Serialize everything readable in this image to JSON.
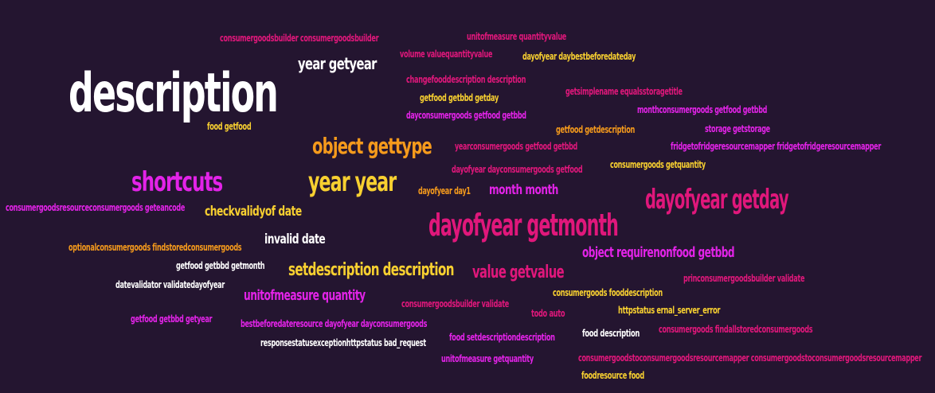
{
  "background": "#241530",
  "palette": {
    "white": "#ffffff",
    "yellow": "#f8d030",
    "orange": "#f59a1c",
    "magenta": "#e323e8",
    "pink": "#e0177b"
  },
  "words": [
    {
      "id": "description",
      "text": "description",
      "color": "white"
    },
    {
      "id": "dayofyear-getmonth",
      "text": "dayofyear getmonth",
      "color": "pink"
    },
    {
      "id": "dayofyear-getday",
      "text": "dayofyear getday",
      "color": "pink"
    },
    {
      "id": "shortcuts",
      "text": "shortcuts",
      "color": "magenta"
    },
    {
      "id": "year-year",
      "text": "year year",
      "color": "yellow"
    },
    {
      "id": "object-gettype",
      "text": "object gettype",
      "color": "orange"
    },
    {
      "id": "setdescription-description",
      "text": "setdescription description",
      "color": "yellow"
    },
    {
      "id": "value-getvalue",
      "text": "value getvalue",
      "color": "pink"
    },
    {
      "id": "year-getyear",
      "text": "year getyear",
      "color": "white"
    },
    {
      "id": "month-month",
      "text": "month month",
      "color": "magenta"
    },
    {
      "id": "object-requirenonfood-getbbd",
      "text": "object requirenonfood getbbd",
      "color": "magenta"
    },
    {
      "id": "unitofmeasure-quantity",
      "text": "unitofmeasure quantity",
      "color": "magenta"
    },
    {
      "id": "invalid-date",
      "text": "invalid date",
      "color": "white"
    },
    {
      "id": "checkvalidyof-date",
      "text": "checkvalidyof date",
      "color": "yellow"
    },
    {
      "id": "consumergoodsbuilder-consumergoodsbuilder",
      "text": "consumergoodsbuilder consumergoodsbuilder",
      "color": "pink"
    },
    {
      "id": "unitofmeasure-quantityvalue",
      "text": "unitofmeasure quantityvalue",
      "color": "pink"
    },
    {
      "id": "volume-valuequantityvalue",
      "text": "volume valuequantityvalue",
      "color": "pink"
    },
    {
      "id": "dayofyear-daybestbeforedateday",
      "text": "dayofyear daybestbeforedateday",
      "color": "yellow"
    },
    {
      "id": "changefooddescription-description",
      "text": "changefooddescription description",
      "color": "pink"
    },
    {
      "id": "getsimplename-equalsstoragetitle",
      "text": "getsimplename equalsstoragetitle",
      "color": "pink"
    },
    {
      "id": "getfood-getbbd-getday",
      "text": "getfood getbbd getday",
      "color": "yellow"
    },
    {
      "id": "monthconsumergoods-getfood-getbbd",
      "text": "monthconsumergoods getfood getbbd",
      "color": "magenta"
    },
    {
      "id": "dayconsumergoods-getfood-getbbd",
      "text": "dayconsumergoods getfood getbbd",
      "color": "magenta"
    },
    {
      "id": "food-getfood",
      "text": "food getfood",
      "color": "yellow"
    },
    {
      "id": "getfood-getdescription",
      "text": "getfood getdescription",
      "color": "orange"
    },
    {
      "id": "storage-getstorage",
      "text": "storage getstorage",
      "color": "magenta"
    },
    {
      "id": "yearconsumergoods-getfood-getbbd",
      "text": "yearconsumergoods getfood getbbd",
      "color": "pink"
    },
    {
      "id": "fridgetofridgeresourcemapper",
      "text": "fridgetofridgeresourcemapper fridgetofridgeresourcemapper",
      "color": "magenta"
    },
    {
      "id": "consumergoods-getquantity",
      "text": "consumergoods getquantity",
      "color": "yellow"
    },
    {
      "id": "dayofyear-dayconsumergoods-getfood",
      "text": "dayofyear dayconsumergoods getfood",
      "color": "pink"
    },
    {
      "id": "dayofyear-day1",
      "text": "dayofyear day1",
      "color": "orange"
    },
    {
      "id": "consumergoodsresourceconsumergoods-geteancode",
      "text": "consumergoodsresourceconsumergoods geteancode",
      "color": "magenta"
    },
    {
      "id": "optionalconsumergoods-findstoredconsumergoods",
      "text": "optionalconsumergoods findstoredconsumergoods",
      "color": "orange"
    },
    {
      "id": "getfood-getbbd-getmonth",
      "text": "getfood getbbd getmonth",
      "color": "white"
    },
    {
      "id": "datevalidator-validatedayofyear",
      "text": "datevalidator validatedayofyear",
      "color": "white"
    },
    {
      "id": "princonsumergoodsbuilder-validate",
      "text": "princonsumergoodsbuilder validate",
      "color": "pink"
    },
    {
      "id": "consumergoods-fooddescription",
      "text": "consumergoods fooddescription",
      "color": "yellow"
    },
    {
      "id": "consumergoodsbuilder-validate",
      "text": "consumergoodsbuilder validate",
      "color": "pink"
    },
    {
      "id": "todo-auto",
      "text": "todo auto",
      "color": "pink"
    },
    {
      "id": "httpstatus-ernal-server-error",
      "text": "httpstatus ernal_server_error",
      "color": "yellow"
    },
    {
      "id": "getfood-getbbd-getyear",
      "text": "getfood getbbd getyear",
      "color": "magenta"
    },
    {
      "id": "bestbeforedateresource-dayofyear-dayconsumergoods",
      "text": "bestbeforedateresource dayofyear dayconsumergoods",
      "color": "magenta"
    },
    {
      "id": "food-setdescriptiondescription",
      "text": "food setdescriptiondescription",
      "color": "magenta"
    },
    {
      "id": "food-description",
      "text": "food description",
      "color": "white"
    },
    {
      "id": "consumergoods-findallstoredconsumergoods",
      "text": "consumergoods findallstoredconsumergoods",
      "color": "pink"
    },
    {
      "id": "responsestatusexceptionhttpstatus-bad-request",
      "text": "responsestatusexceptionhttpstatus bad_request",
      "color": "white"
    },
    {
      "id": "unitofmeasure-getquantity",
      "text": "unitofmeasure getquantity",
      "color": "magenta"
    },
    {
      "id": "consumergoodstoconsumergoodsresourcemapper",
      "text": "consumergoodstoconsumergoodsresourcemapper consumergoodstoconsumergoodsresourcemapper",
      "color": "pink"
    },
    {
      "id": "foodresource-food",
      "text": "foodresource food",
      "color": "yellow"
    }
  ]
}
